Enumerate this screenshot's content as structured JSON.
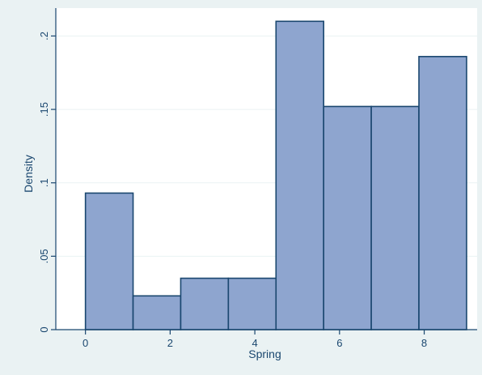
{
  "chart_data": {
    "type": "bar",
    "title": "",
    "xlabel": "Spring",
    "ylabel": "Density",
    "bin_edges": [
      0,
      1.125,
      2.25,
      3.375,
      4.5,
      5.625,
      6.75,
      7.875,
      9
    ],
    "values": [
      0.093,
      0.023,
      0.035,
      0.035,
      0.21,
      0.152,
      0.152,
      0.186
    ],
    "xlim": [
      -0.7,
      9.25
    ],
    "ylim": [
      0,
      0.219
    ],
    "x_ticks": [
      0,
      2,
      4,
      6,
      8
    ],
    "x_tick_labels": [
      "0",
      "2",
      "4",
      "6",
      "8"
    ],
    "y_ticks": [
      0,
      0.05,
      0.1,
      0.15,
      0.2
    ],
    "y_tick_labels": [
      "0",
      ".05",
      ".1",
      ".15",
      ".2"
    ],
    "grid": true,
    "legend": "none"
  },
  "colors": {
    "outer_background": "#eaf2f3",
    "plot_background": "#ffffff",
    "bar_fill": "#8ea5cf",
    "bar_stroke": "#1a476f",
    "axis_color": "#1a476f",
    "grid_color": "#eaf2f3",
    "text_color": "#1a476f"
  }
}
